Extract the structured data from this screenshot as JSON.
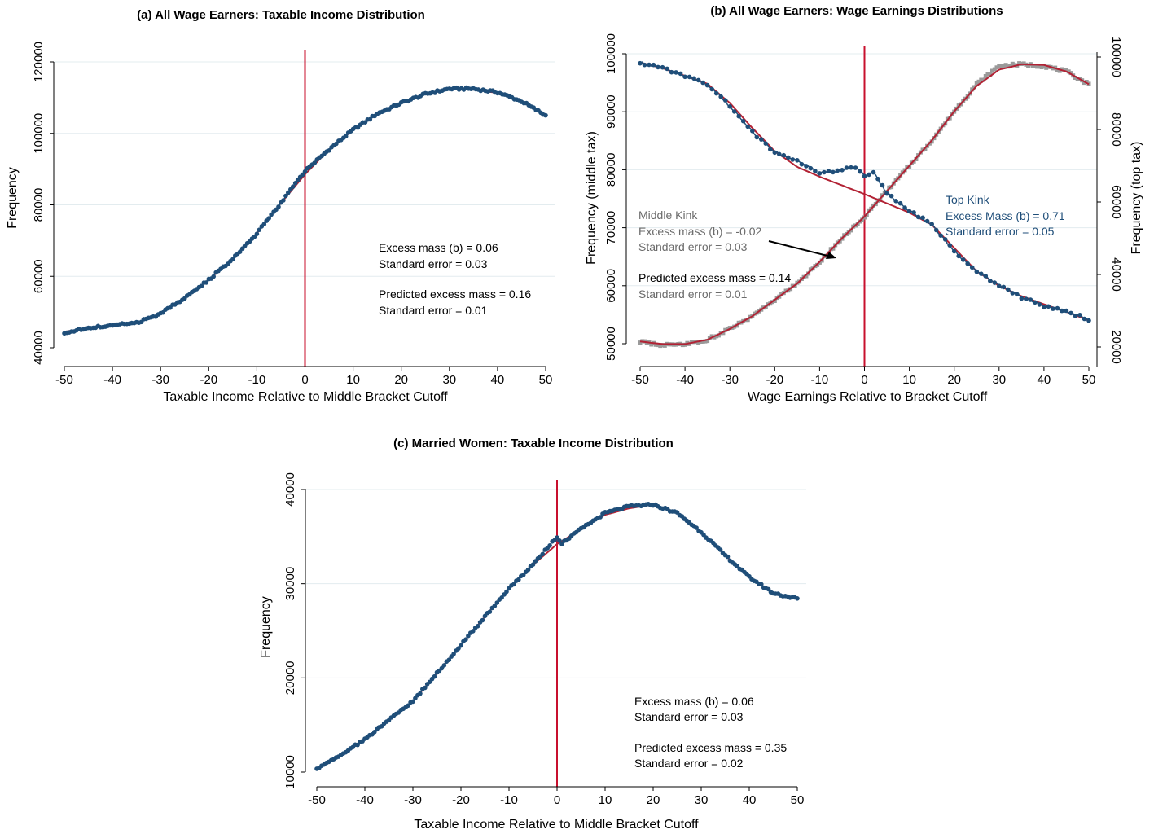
{
  "colors": {
    "dots": "#1f4e79",
    "dots_line": "#1f4e79",
    "fit": "#b22234",
    "kink_line": "#c8102e",
    "grey_series": "#9a9a9a",
    "annotation_blue": "#1f4e79",
    "annotation_grey": "#6b6b6b",
    "grid": "#e3ecef"
  },
  "chart_data": [
    {
      "type": "scatter",
      "title": "(a) All Wage Earners: Taxable Income Distribution",
      "xlabel": "Taxable Income Relative to Middle Bracket Cutoff",
      "ylabel": "Frequency",
      "xlim": [
        -50,
        50
      ],
      "ylim": [
        40000,
        120000
      ],
      "xticks": [
        "-50",
        "-40",
        "-30",
        "-20",
        "-10",
        "0",
        "10",
        "20",
        "30",
        "40",
        "50"
      ],
      "yticks": [
        "40000",
        "60000",
        "80000",
        "100000",
        "120000"
      ],
      "grid": true,
      "kink_x": 0,
      "series": [
        {
          "kind": "dots",
          "x": [
            -50,
            -45,
            -40,
            -35,
            -30,
            -25,
            -20,
            -15,
            -10,
            -5,
            0,
            5,
            10,
            15,
            20,
            25,
            30,
            35,
            40,
            45,
            50
          ],
          "y": [
            44000,
            45600,
            46200,
            47000,
            49500,
            54000,
            59000,
            65000,
            72000,
            80500,
            89500,
            95500,
            101000,
            105500,
            108500,
            111000,
            112500,
            112500,
            111500,
            109000,
            105000
          ]
        },
        {
          "kind": "fit",
          "x": [
            -50,
            -45,
            -40,
            -35,
            -30,
            -25,
            -20,
            -15,
            -10,
            -5,
            0,
            5,
            10,
            15,
            20,
            25,
            30,
            35,
            40,
            45,
            50
          ],
          "y": [
            44500,
            45500,
            46200,
            47000,
            49500,
            54000,
            59000,
            65000,
            72000,
            80500,
            88500,
            95500,
            101000,
            105500,
            108500,
            111000,
            112300,
            112300,
            111300,
            109000,
            105000
          ]
        }
      ],
      "annotations": [
        [
          "Excess mass (b) = 0.06",
          "Standard error = 0.03"
        ],
        [
          "Predicted excess mass = 0.16",
          "Standard error = 0.01"
        ]
      ]
    },
    {
      "type": "scatter",
      "title": "(b) All Wage Earners: Wage Earnings Distributions",
      "xlabel": "Wage Earnings Relative to Bracket Cutoff",
      "ylabel": "Frequency (middle tax)",
      "ylabel_right": "Frequency (top tax)",
      "xlim": [
        -50,
        50
      ],
      "ylim": [
        50000,
        100000
      ],
      "ylim_right": [
        20000,
        100000
      ],
      "xticks": [
        "-50",
        "-40",
        "-30",
        "-20",
        "-10",
        "0",
        "10",
        "20",
        "30",
        "40",
        "50"
      ],
      "yticks": [
        "50000",
        "60000",
        "70000",
        "80000",
        "90000",
        "100000"
      ],
      "yticks_right": [
        "20000",
        "40000",
        "60000",
        "80000",
        "100000"
      ],
      "grid": true,
      "kink_x": 0,
      "series": [
        {
          "name": "Middle Kink",
          "kind": "dots",
          "axis": "left",
          "x": [
            -50,
            -45,
            -40,
            -35,
            -30,
            -25,
            -20,
            -15,
            -10,
            -5,
            -2,
            0,
            2,
            5,
            10,
            15,
            20,
            25,
            30,
            35,
            40,
            45,
            50
          ],
          "y": [
            98500,
            97500,
            96200,
            94800,
            91000,
            86500,
            83000,
            81500,
            79300,
            80000,
            80500,
            79000,
            79500,
            76000,
            73000,
            70500,
            66000,
            62500,
            60000,
            58000,
            56500,
            55500,
            54200
          ]
        },
        {
          "kind": "fit",
          "axis": "left",
          "x": [
            -50,
            -45,
            -40,
            -35,
            -30,
            -25,
            -20,
            -15,
            -10,
            -5,
            0,
            5,
            10,
            15,
            20,
            25,
            30,
            35,
            40,
            45,
            50
          ],
          "y": [
            98500,
            97500,
            96200,
            94800,
            91500,
            87200,
            83200,
            80500,
            78800,
            77300,
            75800,
            74200,
            72600,
            70500,
            66500,
            62500,
            60000,
            58200,
            56800,
            55500,
            54000
          ]
        },
        {
          "name": "Top Kink",
          "kind": "dots",
          "axis": "right",
          "x": [
            -50,
            -45,
            -40,
            -35,
            -30,
            -25,
            -20,
            -15,
            -10,
            -5,
            0,
            5,
            10,
            15,
            20,
            25,
            30,
            35,
            40,
            45,
            50
          ],
          "y": [
            21500,
            20500,
            20800,
            22000,
            25000,
            28500,
            33000,
            37500,
            43500,
            50000,
            56000,
            63000,
            70000,
            77000,
            85000,
            92500,
            97500,
            98000,
            97500,
            96000,
            92500
          ]
        },
        {
          "kind": "fit",
          "axis": "right",
          "x": [
            -50,
            -45,
            -40,
            -35,
            -30,
            -25,
            -20,
            -15,
            -10,
            -5,
            0,
            5,
            10,
            15,
            20,
            25,
            30,
            35,
            40,
            45,
            50
          ],
          "y": [
            21500,
            20800,
            20800,
            22000,
            25000,
            28500,
            33000,
            37500,
            43500,
            50000,
            56000,
            63000,
            70000,
            77000,
            85000,
            92000,
            96500,
            98000,
            97800,
            96000,
            92500
          ]
        }
      ],
      "annotations_middle": {
        "title": "Middle Kink",
        "lines": [
          "Excess mass (b) = -0.02",
          "Standard error = 0.03"
        ],
        "predicted": [
          "Predicted excess mass = 0.14",
          "Standard error = 0.01"
        ]
      },
      "annotations_top": {
        "title": "Top Kink",
        "lines": [
          "Excess Mass (b) = 0.71",
          "Standard error = 0.05"
        ]
      }
    },
    {
      "type": "scatter",
      "title": "(c) Married Women: Taxable Income Distribution",
      "xlabel": "Taxable Income Relative to Middle Bracket Cutoff",
      "ylabel": "Frequency",
      "xlim": [
        -50,
        50
      ],
      "ylim": [
        10000,
        40000
      ],
      "xticks": [
        "-50",
        "-40",
        "-30",
        "-20",
        "-10",
        "0",
        "10",
        "20",
        "30",
        "40",
        "50"
      ],
      "yticks": [
        "10000",
        "20000",
        "30000",
        "40000"
      ],
      "grid": true,
      "kink_x": 0,
      "series": [
        {
          "kind": "dots",
          "x": [
            -50,
            -45,
            -40,
            -35,
            -30,
            -25,
            -20,
            -15,
            -10,
            -5,
            0,
            1,
            5,
            10,
            15,
            20,
            25,
            30,
            35,
            40,
            45,
            50
          ],
          "y": [
            10300,
            11800,
            13500,
            15500,
            17500,
            20500,
            23500,
            26500,
            29500,
            32000,
            35000,
            34300,
            35800,
            37500,
            38200,
            38400,
            37500,
            35500,
            33000,
            30700,
            29000,
            28400
          ]
        },
        {
          "kind": "fit",
          "x": [
            -50,
            -45,
            -40,
            -35,
            -30,
            -25,
            -20,
            -15,
            -10,
            -5,
            0,
            5,
            10,
            15,
            20,
            25,
            30,
            35,
            40,
            45,
            50
          ],
          "y": [
            10300,
            11800,
            13500,
            15500,
            17500,
            20500,
            23500,
            26500,
            29500,
            32000,
            34200,
            35800,
            37300,
            38000,
            38400,
            37500,
            35500,
            33000,
            30700,
            29000,
            28400
          ]
        }
      ],
      "annotations": [
        [
          "Excess mass (b) = 0.06",
          "Standard error = 0.03"
        ],
        [
          "Predicted excess mass = 0.35",
          "Standard error = 0.02"
        ]
      ]
    }
  ]
}
